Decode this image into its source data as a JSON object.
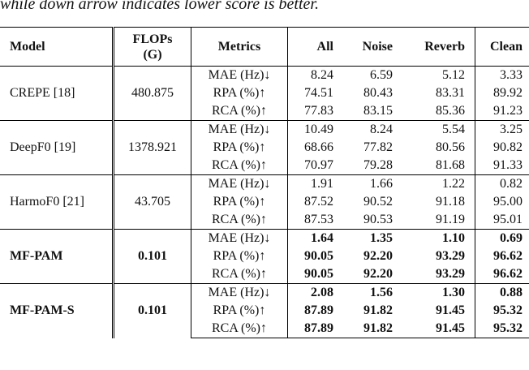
{
  "caption_tail": "while down arrow indicates lower score is better.",
  "headers": {
    "model": "Model",
    "flops_line1": "FLOPs",
    "flops_line2": "(G)",
    "metrics": "Metrics",
    "all": "All",
    "noise": "Noise",
    "reverb": "Reverb",
    "clean": "Clean"
  },
  "rows": [
    {
      "model": "CREPE [18]",
      "flops": "480.875",
      "bold": false,
      "metrics": [
        {
          "name": "MAE (Hz)↓",
          "all": "8.24",
          "noise": "6.59",
          "reverb": "5.12",
          "clean": "3.33"
        },
        {
          "name": "RPA   (%)↑",
          "all": "74.51",
          "noise": "80.43",
          "reverb": "83.31",
          "clean": "89.92"
        },
        {
          "name": "RCA   (%)↑",
          "all": "77.83",
          "noise": "83.15",
          "reverb": "85.36",
          "clean": "91.23"
        }
      ]
    },
    {
      "model": "DeepF0 [19]",
      "flops": "1378.921",
      "bold": false,
      "metrics": [
        {
          "name": "MAE (Hz)↓",
          "all": "10.49",
          "noise": "8.24",
          "reverb": "5.54",
          "clean": "3.25"
        },
        {
          "name": "RPA   (%)↑",
          "all": "68.66",
          "noise": "77.82",
          "reverb": "80.56",
          "clean": "90.82"
        },
        {
          "name": "RCA   (%)↑",
          "all": "70.97",
          "noise": "79.28",
          "reverb": "81.68",
          "clean": "91.33"
        }
      ]
    },
    {
      "model": "HarmoF0 [21]",
      "flops": "43.705",
      "bold": false,
      "metrics": [
        {
          "name": "MAE (Hz)↓",
          "all": "1.91",
          "noise": "1.66",
          "reverb": "1.22",
          "clean": "0.82"
        },
        {
          "name": "RPA   (%)↑",
          "all": "87.52",
          "noise": "90.52",
          "reverb": "91.18",
          "clean": "95.00"
        },
        {
          "name": "RCA   (%)↑",
          "all": "87.53",
          "noise": "90.53",
          "reverb": "91.19",
          "clean": "95.01"
        }
      ]
    },
    {
      "model": "MF-PAM",
      "flops": "0.101",
      "bold": true,
      "metrics": [
        {
          "name": "MAE (Hz)↓",
          "all": "1.64",
          "noise": "1.35",
          "reverb": "1.10",
          "clean": "0.69"
        },
        {
          "name": "RPA   (%)↑",
          "all": "90.05",
          "noise": "92.20",
          "reverb": "93.29",
          "clean": "96.62"
        },
        {
          "name": "RCA   (%)↑",
          "all": "90.05",
          "noise": "92.20",
          "reverb": "93.29",
          "clean": "96.62"
        }
      ]
    },
    {
      "model": "MF-PAM-S",
      "flops": "0.101",
      "bold": true,
      "metrics": [
        {
          "name": "MAE (Hz)↓",
          "all": "2.08",
          "noise": "1.56",
          "reverb": "1.30",
          "clean": "0.88"
        },
        {
          "name": "RPA   (%)↑",
          "all": "87.89",
          "noise": "91.82",
          "reverb": "91.45",
          "clean": "95.32"
        },
        {
          "name": "RCA   (%)↑",
          "all": "87.89",
          "noise": "91.82",
          "reverb": "91.45",
          "clean": "95.32"
        }
      ]
    }
  ]
}
